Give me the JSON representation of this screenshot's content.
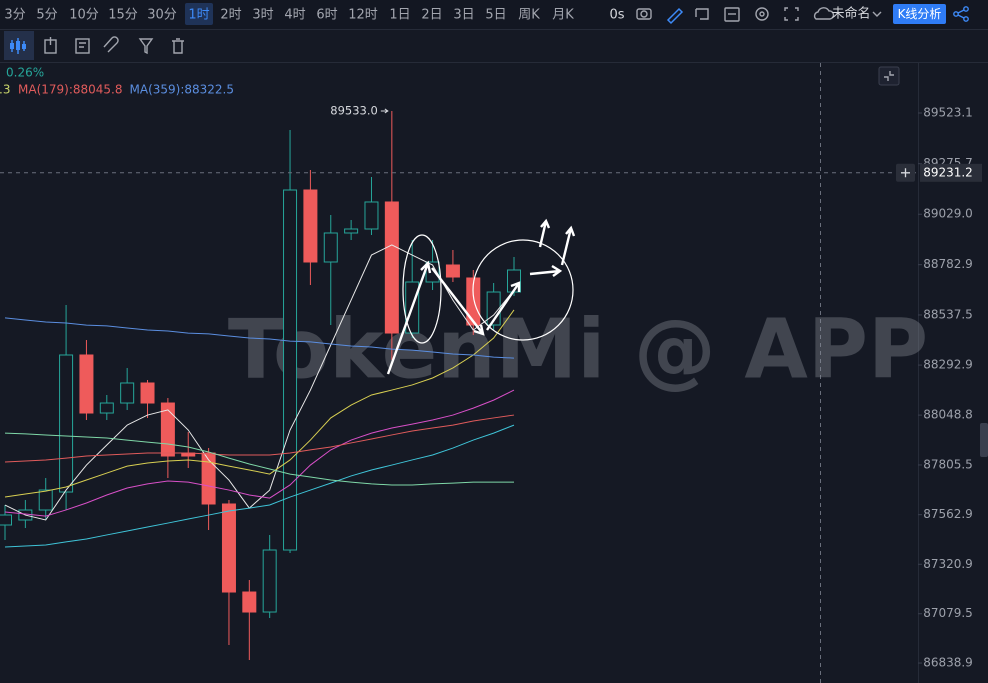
{
  "toolbar": {
    "timeframes": [
      "3分",
      "5分",
      "10分",
      "15分",
      "30分",
      "1时",
      "2时",
      "3时",
      "4时",
      "6时",
      "12时",
      "1日",
      "2日",
      "3日",
      "5日",
      "周K",
      "月K"
    ],
    "active": 5,
    "clock": "0s",
    "layout_name": "未命名",
    "analysis_button": "K线分析"
  },
  "chart_data": {
    "type": "candlestick",
    "watermark": "TokenMi @ APP",
    "legend_fragments": [
      {
        "text": "0.26%",
        "color": "#26a69a"
      },
      {
        "text": ".3",
        "color": "#c8d46a"
      }
    ],
    "open": [
      87512.5,
      87536.9,
      87585.7,
      87673.5,
      88342.1,
      88059.0,
      88107.8,
      88205.5,
      88107.8,
      87863.8,
      87863.8,
      87615.0,
      87185.5,
      87087.9,
      87390.5,
      89147.3,
      88796.0,
      88937.5,
      88957.0,
      89088.8,
      88449.4,
      88698.3,
      88781.3,
      88717.9,
      88488.5,
      88649.5
    ],
    "high": [
      87610.1,
      87634.5,
      87741.8,
      88586.1,
      88415.3,
      88146.9,
      88278.6,
      88220.1,
      88132.2,
      87966.3,
      87888.2,
      87634.5,
      87244.1,
      87463.7,
      89440.1,
      89244.9,
      89025.3,
      89000.9,
      89210.8,
      89533.0,
      88903.3,
      88903.3,
      88854.5,
      88756.9,
      88693.5,
      88820.4
    ],
    "low": [
      87439.3,
      87497.9,
      87536.9,
      87585.7,
      88024.9,
      88024.9,
      88073.7,
      88034.6,
      87741.8,
      87790.6,
      87488.1,
      86926.9,
      86853.7,
      87058.6,
      87375.9,
      88683.7,
      88488.5,
      88903.3,
      88927.7,
      88317.7,
      88425.0,
      88659.3,
      88698.3,
      88439.7,
      88464.1,
      88630.0
    ],
    "close": [
      87561.3,
      87585.7,
      87683.3,
      88342.1,
      88059.0,
      88107.8,
      88205.5,
      88107.8,
      87849.2,
      87849.2,
      87615.0,
      87185.5,
      87087.9,
      87390.5,
      89147.3,
      88796.0,
      88937.5,
      88957.0,
      89088.8,
      88449.4,
      88698.3,
      88796.0,
      88722.7,
      88488.5,
      88649.5,
      88756.9
    ],
    "up_color": "#26a69a",
    "down_color": "#ef5b5b",
    "high_label": "89533.0",
    "high_index": 19,
    "crosshair_price": 89231.2,
    "series": [
      {
        "color": "#e8e8e8",
        "values": [
          87610,
          87561,
          87537,
          87683,
          87805,
          87903,
          88000,
          88049,
          88074,
          87976,
          87830,
          87732,
          87595,
          87683,
          87976,
          88171,
          88391,
          88610,
          88830,
          88879,
          88830,
          88781,
          88610,
          88464,
          88537,
          88659
        ]
      },
      {
        "color": "#d8cf52",
        "values": [
          87649,
          87664,
          87678,
          87698,
          87732,
          87766,
          87800,
          87815,
          87825,
          87830,
          87820,
          87800,
          87781,
          87761,
          87830,
          87927,
          88035,
          88098,
          88147,
          88171,
          88196,
          88230,
          88279,
          88342,
          88425,
          88562
        ]
      },
      {
        "color": "#d850c8",
        "values": [
          87576,
          87566,
          87556,
          87586,
          87620,
          87659,
          87693,
          87713,
          87727,
          87722,
          87703,
          87683,
          87659,
          87644,
          87708,
          87805,
          87879,
          87927,
          87961,
          87986,
          88005,
          88025,
          88049,
          88083,
          88122,
          88171
        ]
      },
      {
        "name": "MA(179):88045.8",
        "color": "#e05b5b",
        "values": [
          87820,
          87825,
          87830,
          87839,
          87849,
          87854,
          87859,
          87864,
          87864,
          87864,
          87859,
          87854,
          87854,
          87854,
          87864,
          87879,
          87893,
          87913,
          87932,
          87952,
          87971,
          87986,
          88000,
          88020,
          88035,
          88049
        ]
      },
      {
        "color": "#3fc4d8",
        "values": [
          87405,
          87410,
          87415,
          87430,
          87444,
          87464,
          87483,
          87503,
          87522,
          87542,
          87561,
          87581,
          87595,
          87610,
          87649,
          87683,
          87717,
          87752,
          87781,
          87805,
          87830,
          87854,
          87888,
          87927,
          87961,
          88000
        ]
      },
      {
        "color": "#7fd8a8",
        "values": [
          87961,
          87957,
          87952,
          87947,
          87942,
          87937,
          87927,
          87917,
          87908,
          87893,
          87869,
          87839,
          87810,
          87786,
          87761,
          87747,
          87732,
          87722,
          87713,
          87708,
          87708,
          87713,
          87717,
          87722,
          87722,
          87722
        ]
      },
      {
        "name": "MA(359):88322.5",
        "color": "#5b8ee0",
        "values": [
          88523,
          88513,
          88503,
          88498,
          88488,
          88484,
          88474,
          88464,
          88459,
          88449,
          88445,
          88435,
          88425,
          88420,
          88410,
          88406,
          88396,
          88386,
          88381,
          88371,
          88366,
          88357,
          88347,
          88342,
          88332,
          88327
        ]
      }
    ],
    "ylim": [
      86741.5,
      89781.7
    ],
    "yticks": [
      89523.1,
      89275.7,
      {
        "value": 89029,
        "label": "89029.0"
      },
      88782.9,
      88537.5,
      88292.9,
      88048.8,
      87805.5,
      87562.9,
      87320.9,
      87079.5,
      86838.9
    ],
    "grid": false
  }
}
